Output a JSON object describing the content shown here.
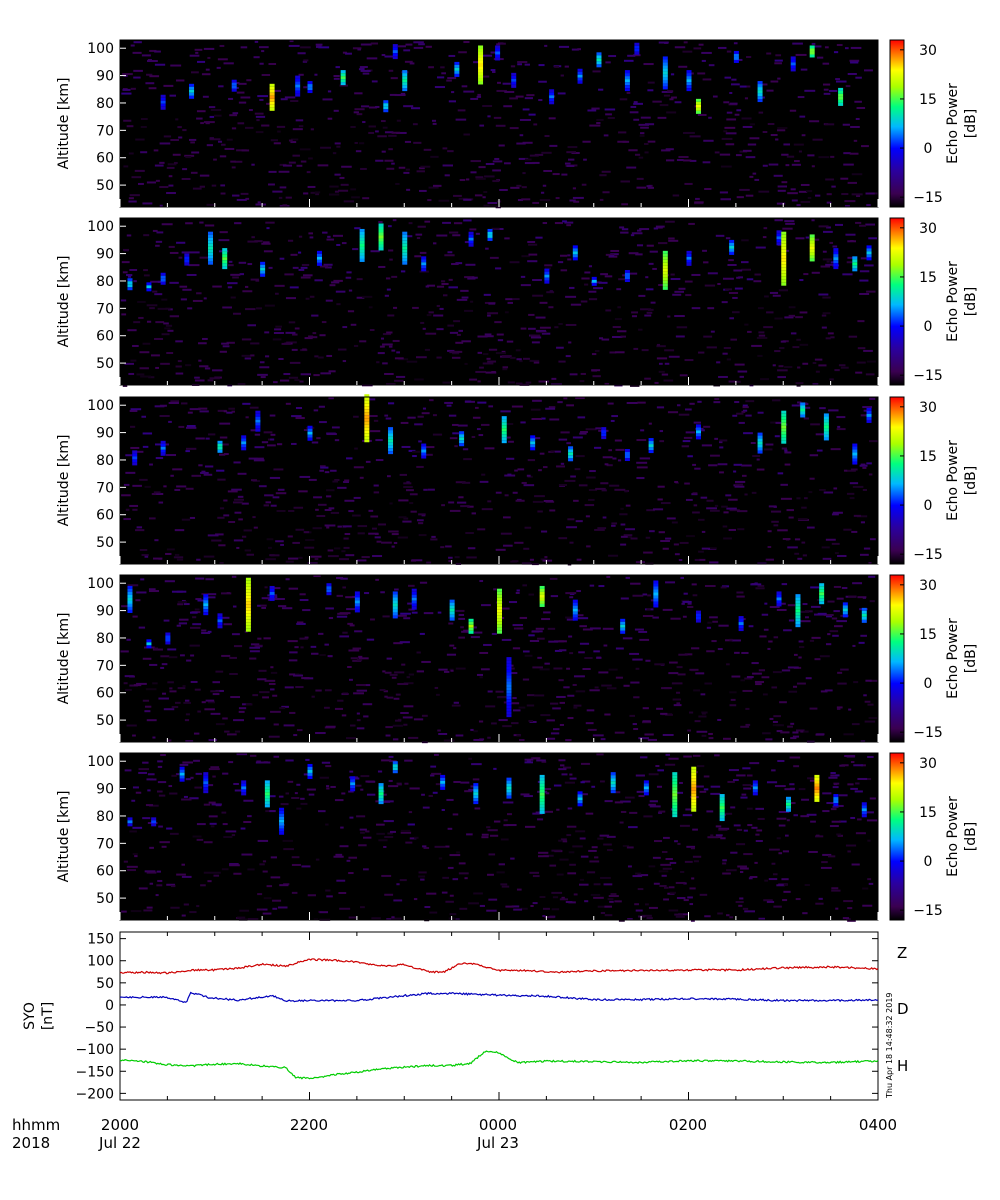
{
  "colors": {
    "z": "#cc0000",
    "d": "#0000bb",
    "h": "#00cc00",
    "background": "#000000"
  },
  "echo_colorbar": {
    "label_line1": "Echo Power",
    "label_line2": "[dB]",
    "ticks": [
      "30",
      "15",
      "0",
      "−15"
    ],
    "tick_values": [
      30,
      15,
      0,
      -15
    ],
    "range": [
      -18,
      33
    ]
  },
  "timestamp": "Thu Apr 18 14:48:32 2019",
  "time_axis": {
    "row1_label": "hhmm",
    "row2_label": "2018",
    "ticks": [
      "2000",
      "2200",
      "0000",
      "0200",
      "0400"
    ],
    "dates": [
      {
        "tick_index": 0,
        "text": "Jul 22"
      },
      {
        "tick_index": 2,
        "text": "Jul 23"
      }
    ]
  },
  "chart_data": [
    {
      "type": "heatmap",
      "panel": 1,
      "ylabel": "Altitude [km]",
      "ylim": [
        42,
        103
      ],
      "yticks": [
        50,
        60,
        70,
        80,
        90,
        100
      ],
      "ytick_labels": [
        "50",
        "60",
        "70",
        "80",
        "90",
        "100"
      ],
      "x_hours": [
        0,
        8
      ],
      "zlim": [
        -15,
        33
      ],
      "echoes": [
        {
          "t": 0.45,
          "h": 80.5,
          "d": 5,
          "p": 2
        },
        {
          "t": 0.75,
          "h": 84,
          "d": 6,
          "p": 8
        },
        {
          "t": 1.2,
          "h": 86.5,
          "d": 4,
          "p": 5
        },
        {
          "t": 1.6,
          "h": 82,
          "d": 10,
          "p": 27
        },
        {
          "t": 1.87,
          "h": 86,
          "d": 8,
          "p": 4
        },
        {
          "t": 2.0,
          "h": 86,
          "d": 4,
          "p": 6
        },
        {
          "t": 2.35,
          "h": 89,
          "d": 6,
          "p": 14
        },
        {
          "t": 2.9,
          "h": 99,
          "d": 5,
          "p": 3
        },
        {
          "t": 2.8,
          "h": 79,
          "d": 4,
          "p": 9
        },
        {
          "t": 3.0,
          "h": 88,
          "d": 8,
          "p": 11
        },
        {
          "t": 3.55,
          "h": 92.5,
          "d": 5,
          "p": 8
        },
        {
          "t": 3.8,
          "h": 94,
          "d": 14,
          "p": 24
        },
        {
          "t": 3.98,
          "h": 98,
          "d": 6,
          "p": 3
        },
        {
          "t": 4.15,
          "h": 88,
          "d": 6,
          "p": 2
        },
        {
          "t": 4.55,
          "h": 82,
          "d": 6,
          "p": 4
        },
        {
          "t": 4.85,
          "h": 90,
          "d": 5,
          "p": 5
        },
        {
          "t": 5.05,
          "h": 96,
          "d": 5,
          "p": 10
        },
        {
          "t": 5.35,
          "h": 88,
          "d": 8,
          "p": 6
        },
        {
          "t": 5.45,
          "h": 100,
          "d": 4,
          "p": 3
        },
        {
          "t": 5.75,
          "h": 91,
          "d": 12,
          "p": 8
        },
        {
          "t": 6.0,
          "h": 88,
          "d": 8,
          "p": 6
        },
        {
          "t": 6.1,
          "h": 79,
          "d": 5,
          "p": 22
        },
        {
          "t": 6.5,
          "h": 97,
          "d": 4,
          "p": 6
        },
        {
          "t": 6.75,
          "h": 84,
          "d": 8,
          "p": 9
        },
        {
          "t": 7.1,
          "h": 94,
          "d": 6,
          "p": 3
        },
        {
          "t": 7.3,
          "h": 99,
          "d": 4,
          "p": 18
        },
        {
          "t": 7.6,
          "h": 82,
          "d": 7,
          "p": 16
        }
      ]
    },
    {
      "type": "heatmap",
      "panel": 2,
      "ylabel": "Altitude [km]",
      "ylim": [
        42,
        103
      ],
      "yticks": [
        50,
        60,
        70,
        80,
        90,
        100
      ],
      "ytick_labels": [
        "50",
        "60",
        "70",
        "80",
        "90",
        "100"
      ],
      "x_hours": [
        0,
        8
      ],
      "zlim": [
        -15,
        33
      ],
      "echoes": [
        {
          "t": 0.1,
          "h": 79,
          "d": 4,
          "p": 9
        },
        {
          "t": 0.3,
          "h": 78,
          "d": 3,
          "p": 7
        },
        {
          "t": 0.45,
          "h": 81,
          "d": 4,
          "p": 5
        },
        {
          "t": 0.7,
          "h": 88,
          "d": 4,
          "p": 3
        },
        {
          "t": 0.95,
          "h": 92,
          "d": 12,
          "p": 10
        },
        {
          "t": 1.1,
          "h": 88,
          "d": 8,
          "p": 15
        },
        {
          "t": 1.5,
          "h": 84,
          "d": 6,
          "p": 8
        },
        {
          "t": 2.1,
          "h": 88,
          "d": 6,
          "p": 6
        },
        {
          "t": 2.55,
          "h": 93,
          "d": 12,
          "p": 12
        },
        {
          "t": 2.75,
          "h": 96,
          "d": 10,
          "p": 16
        },
        {
          "t": 3.0,
          "h": 92,
          "d": 12,
          "p": 11
        },
        {
          "t": 3.2,
          "h": 86,
          "d": 6,
          "p": 5
        },
        {
          "t": 3.7,
          "h": 95,
          "d": 6,
          "p": 4
        },
        {
          "t": 3.9,
          "h": 97,
          "d": 4,
          "p": 9
        },
        {
          "t": 4.5,
          "h": 82,
          "d": 5,
          "p": 5
        },
        {
          "t": 4.8,
          "h": 90,
          "d": 6,
          "p": 7
        },
        {
          "t": 5.0,
          "h": 80,
          "d": 3,
          "p": 6
        },
        {
          "t": 5.35,
          "h": 82,
          "d": 4,
          "p": 5
        },
        {
          "t": 5.75,
          "h": 84,
          "d": 14,
          "p": 21
        },
        {
          "t": 6.0,
          "h": 88,
          "d": 6,
          "p": 4
        },
        {
          "t": 6.45,
          "h": 92,
          "d": 6,
          "p": 8
        },
        {
          "t": 6.95,
          "h": 96,
          "d": 5,
          "p": 3
        },
        {
          "t": 7.0,
          "h": 88,
          "d": 20,
          "p": 24
        },
        {
          "t": 7.3,
          "h": 92,
          "d": 10,
          "p": 22
        },
        {
          "t": 7.55,
          "h": 88,
          "d": 8,
          "p": 5
        },
        {
          "t": 7.75,
          "h": 86,
          "d": 6,
          "p": 12
        },
        {
          "t": 7.9,
          "h": 90,
          "d": 6,
          "p": 7
        }
      ]
    },
    {
      "type": "heatmap",
      "panel": 3,
      "ylabel": "Altitude [km]",
      "ylim": [
        42,
        103
      ],
      "yticks": [
        50,
        60,
        70,
        80,
        90,
        100
      ],
      "ytick_labels": [
        "50",
        "60",
        "70",
        "80",
        "90",
        "100"
      ],
      "x_hours": [
        0,
        8
      ],
      "zlim": [
        -15,
        33
      ],
      "echoes": [
        {
          "t": 0.15,
          "h": 81,
          "d": 5,
          "p": 2
        },
        {
          "t": 0.45,
          "h": 84,
          "d": 6,
          "p": 4
        },
        {
          "t": 1.05,
          "h": 85,
          "d": 4,
          "p": 12
        },
        {
          "t": 1.3,
          "h": 86,
          "d": 6,
          "p": 5
        },
        {
          "t": 1.45,
          "h": 94,
          "d": 8,
          "p": 4
        },
        {
          "t": 2.0,
          "h": 90,
          "d": 5,
          "p": 6
        },
        {
          "t": 2.6,
          "h": 95,
          "d": 18,
          "p": 27
        },
        {
          "t": 2.85,
          "h": 87,
          "d": 10,
          "p": 10
        },
        {
          "t": 3.2,
          "h": 83,
          "d": 6,
          "p": 5
        },
        {
          "t": 3.6,
          "h": 88,
          "d": 5,
          "p": 9
        },
        {
          "t": 4.05,
          "h": 91,
          "d": 10,
          "p": 13
        },
        {
          "t": 4.35,
          "h": 86,
          "d": 6,
          "p": 7
        },
        {
          "t": 4.75,
          "h": 82,
          "d": 6,
          "p": 10
        },
        {
          "t": 5.1,
          "h": 90,
          "d": 4,
          "p": 3
        },
        {
          "t": 5.35,
          "h": 82,
          "d": 4,
          "p": 5
        },
        {
          "t": 5.6,
          "h": 85,
          "d": 6,
          "p": 8
        },
        {
          "t": 6.1,
          "h": 90,
          "d": 6,
          "p": 6
        },
        {
          "t": 6.75,
          "h": 86,
          "d": 8,
          "p": 9
        },
        {
          "t": 7.0,
          "h": 92,
          "d": 12,
          "p": 16
        },
        {
          "t": 7.2,
          "h": 98,
          "d": 6,
          "p": 11
        },
        {
          "t": 7.45,
          "h": 92,
          "d": 10,
          "p": 12
        },
        {
          "t": 7.75,
          "h": 82,
          "d": 8,
          "p": 6
        },
        {
          "t": 7.9,
          "h": 96,
          "d": 6,
          "p": 5
        }
      ]
    },
    {
      "type": "heatmap",
      "panel": 4,
      "ylabel": "Altitude [km]",
      "ylim": [
        42,
        103
      ],
      "yticks": [
        50,
        60,
        70,
        80,
        90,
        100
      ],
      "ytick_labels": [
        "50",
        "60",
        "70",
        "80",
        "90",
        "100"
      ],
      "x_hours": [
        0,
        8
      ],
      "zlim": [
        -15,
        33
      ],
      "echoes": [
        {
          "t": 0.1,
          "h": 94,
          "d": 10,
          "p": 8
        },
        {
          "t": 0.3,
          "h": 78,
          "d": 3,
          "p": 7
        },
        {
          "t": 0.5,
          "h": 80,
          "d": 4,
          "p": 4
        },
        {
          "t": 0.9,
          "h": 92,
          "d": 8,
          "p": 6
        },
        {
          "t": 1.05,
          "h": 86,
          "d": 6,
          "p": 3
        },
        {
          "t": 1.35,
          "h": 92,
          "d": 20,
          "p": 25
        },
        {
          "t": 1.6,
          "h": 96,
          "d": 6,
          "p": 3
        },
        {
          "t": 2.2,
          "h": 98,
          "d": 4,
          "p": 5
        },
        {
          "t": 2.5,
          "h": 93,
          "d": 8,
          "p": 5
        },
        {
          "t": 2.9,
          "h": 92,
          "d": 10,
          "p": 9
        },
        {
          "t": 3.1,
          "h": 94,
          "d": 8,
          "p": 4
        },
        {
          "t": 3.5,
          "h": 90,
          "d": 8,
          "p": 10
        },
        {
          "t": 3.7,
          "h": 84,
          "d": 6,
          "p": 18
        },
        {
          "t": 4.0,
          "h": 90,
          "d": 16,
          "p": 22
        },
        {
          "t": 4.1,
          "h": 62,
          "d": 22,
          "p": 4
        },
        {
          "t": 4.45,
          "h": 95,
          "d": 8,
          "p": 21
        },
        {
          "t": 4.8,
          "h": 90,
          "d": 8,
          "p": 6
        },
        {
          "t": 5.3,
          "h": 84,
          "d": 6,
          "p": 8
        },
        {
          "t": 5.65,
          "h": 96,
          "d": 10,
          "p": 6
        },
        {
          "t": 6.1,
          "h": 88,
          "d": 4,
          "p": 3
        },
        {
          "t": 6.55,
          "h": 85,
          "d": 6,
          "p": 4
        },
        {
          "t": 6.95,
          "h": 94,
          "d": 6,
          "p": 4
        },
        {
          "t": 7.15,
          "h": 90,
          "d": 12,
          "p": 12
        },
        {
          "t": 7.4,
          "h": 96,
          "d": 8,
          "p": 14
        },
        {
          "t": 7.65,
          "h": 90,
          "d": 6,
          "p": 8
        },
        {
          "t": 7.85,
          "h": 88,
          "d": 6,
          "p": 10
        }
      ]
    },
    {
      "type": "heatmap",
      "panel": 5,
      "ylabel": "Altitude [km]",
      "ylim": [
        42,
        103
      ],
      "yticks": [
        50,
        60,
        70,
        80,
        90,
        100
      ],
      "ytick_labels": [
        "50",
        "60",
        "70",
        "80",
        "90",
        "100"
      ],
      "x_hours": [
        0,
        8
      ],
      "zlim": [
        -15,
        33
      ],
      "echoes": [
        {
          "t": 0.1,
          "h": 78,
          "d": 3,
          "p": 4
        },
        {
          "t": 0.35,
          "h": 78,
          "d": 3,
          "p": 2
        },
        {
          "t": 0.65,
          "h": 95,
          "d": 6,
          "p": 6
        },
        {
          "t": 0.9,
          "h": 92,
          "d": 8,
          "p": 3
        },
        {
          "t": 1.3,
          "h": 90,
          "d": 6,
          "p": 4
        },
        {
          "t": 1.55,
          "h": 88,
          "d": 10,
          "p": 13
        },
        {
          "t": 1.7,
          "h": 78,
          "d": 10,
          "p": 6
        },
        {
          "t": 2.0,
          "h": 96,
          "d": 6,
          "p": 7
        },
        {
          "t": 2.45,
          "h": 92,
          "d": 5,
          "p": 5
        },
        {
          "t": 2.75,
          "h": 88,
          "d": 8,
          "p": 12
        },
        {
          "t": 2.9,
          "h": 98,
          "d": 4,
          "p": 10
        },
        {
          "t": 3.4,
          "h": 92,
          "d": 6,
          "p": 6
        },
        {
          "t": 3.75,
          "h": 88,
          "d": 8,
          "p": 8
        },
        {
          "t": 4.1,
          "h": 90,
          "d": 8,
          "p": 9
        },
        {
          "t": 4.45,
          "h": 88,
          "d": 14,
          "p": 14
        },
        {
          "t": 4.85,
          "h": 86,
          "d": 6,
          "p": 7
        },
        {
          "t": 5.2,
          "h": 92,
          "d": 8,
          "p": 9
        },
        {
          "t": 5.55,
          "h": 90,
          "d": 6,
          "p": 6
        },
        {
          "t": 5.85,
          "h": 88,
          "d": 16,
          "p": 16
        },
        {
          "t": 6.05,
          "h": 90,
          "d": 16,
          "p": 27
        },
        {
          "t": 6.35,
          "h": 83,
          "d": 10,
          "p": 14
        },
        {
          "t": 6.7,
          "h": 90,
          "d": 6,
          "p": 5
        },
        {
          "t": 7.05,
          "h": 84,
          "d": 6,
          "p": 12
        },
        {
          "t": 7.35,
          "h": 90,
          "d": 10,
          "p": 28
        },
        {
          "t": 7.55,
          "h": 86,
          "d": 4,
          "p": 6
        },
        {
          "t": 7.85,
          "h": 82,
          "d": 6,
          "p": 5
        }
      ]
    },
    {
      "type": "line",
      "panel": 6,
      "ylabel_line1": "SYO",
      "ylabel_line2": "[nT]",
      "ylim": [
        -215,
        165
      ],
      "yticks": [
        150,
        100,
        50,
        0,
        -50,
        -100,
        -150,
        -200
      ],
      "ytick_labels": [
        "150",
        "100",
        "50",
        "0",
        "−50",
        "−100",
        "−150",
        "−200"
      ],
      "x_hours": [
        0,
        8
      ],
      "series": [
        {
          "name": "Z",
          "color": "#cc0000",
          "x": [
            0,
            0.3,
            0.5,
            0.75,
            1.0,
            1.25,
            1.5,
            1.75,
            2.0,
            2.25,
            2.5,
            2.75,
            3.0,
            3.25,
            3.4,
            3.6,
            3.75,
            4.0,
            4.3,
            4.6,
            5.0,
            5.5,
            6.0,
            6.5,
            7.0,
            7.5,
            8.0
          ],
          "y": [
            73,
            74,
            72,
            79,
            79,
            83,
            92,
            88,
            103,
            101,
            97,
            88,
            91,
            76,
            73,
            94,
            92,
            78,
            78,
            74,
            77,
            78,
            79,
            79,
            84,
            86,
            82
          ]
        },
        {
          "name": "D",
          "color": "#0000bb",
          "x": [
            0,
            0.5,
            0.7,
            0.75,
            0.95,
            1.25,
            1.6,
            1.75,
            2.0,
            2.5,
            3.0,
            3.25,
            3.5,
            3.75,
            4.0,
            4.5,
            5.0,
            5.5,
            6.0,
            6.5,
            7.0,
            7.5,
            8.0
          ],
          "y": [
            18,
            17,
            5,
            28,
            16,
            11,
            21,
            9,
            10,
            10,
            21,
            26,
            26,
            24,
            22,
            20,
            12,
            12,
            14,
            13,
            10,
            10,
            12
          ]
        },
        {
          "name": "H",
          "color": "#00cc00",
          "x": [
            0,
            0.25,
            0.5,
            0.75,
            1.0,
            1.25,
            1.5,
            1.75,
            1.85,
            2.0,
            2.25,
            2.5,
            2.75,
            3.0,
            3.25,
            3.5,
            3.7,
            3.85,
            4.0,
            4.2,
            4.5,
            5.0,
            5.5,
            6.0,
            6.5,
            7.0,
            7.5,
            8.0
          ],
          "y": [
            -125,
            -128,
            -135,
            -138,
            -134,
            -133,
            -138,
            -142,
            -163,
            -167,
            -158,
            -152,
            -145,
            -141,
            -137,
            -137,
            -132,
            -105,
            -108,
            -131,
            -127,
            -128,
            -130,
            -126,
            -127,
            -129,
            -130,
            -127
          ]
        }
      ]
    }
  ]
}
